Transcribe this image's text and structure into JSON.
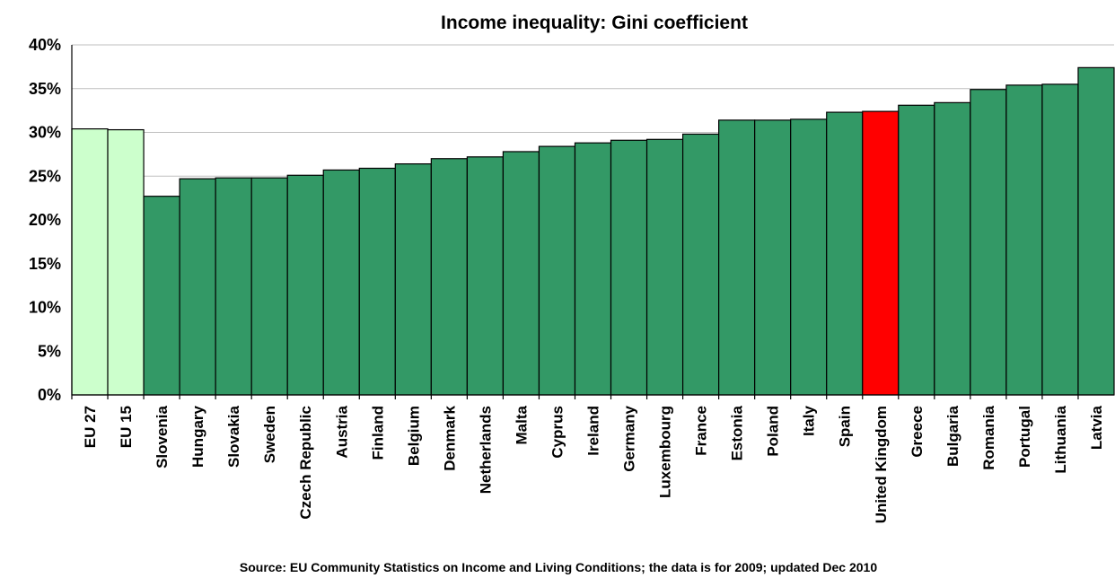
{
  "chart_data": {
    "type": "bar",
    "title": "Income inequality: Gini coefficient",
    "source": "Source: EU Community Statistics on Income and Living Conditions; the data is for 2009; updated Dec 2010",
    "xlabel": "",
    "ylabel": "",
    "ylim": [
      0,
      40
    ],
    "yticks": [
      0,
      5,
      10,
      15,
      20,
      25,
      30,
      35,
      40
    ],
    "y_tick_suffix": "%",
    "grid": true,
    "legend": "none",
    "colors": {
      "aggregate": "#ccffcc",
      "country": "#339966",
      "highlight": "#ff0000"
    },
    "categories": [
      "EU 27",
      "EU 15",
      "Slovenia",
      "Hungary",
      "Slovakia",
      "Sweden",
      "Czech Republic",
      "Austria",
      "Finland",
      "Belgium",
      "Denmark",
      "Netherlands",
      "Malta",
      "Cyprus",
      "Ireland",
      "Germany",
      "Luxembourg",
      "France",
      "Estonia",
      "Poland",
      "Italy",
      "Spain",
      "United Kingdom",
      "Greece",
      "Bulgaria",
      "Romania",
      "Portugal",
      "Lithuania",
      "Latvia"
    ],
    "values": [
      30.4,
      30.3,
      22.7,
      24.7,
      24.8,
      24.8,
      25.1,
      25.7,
      25.9,
      26.4,
      27.0,
      27.2,
      27.8,
      28.4,
      28.8,
      29.1,
      29.2,
      29.8,
      31.4,
      31.4,
      31.5,
      32.3,
      32.4,
      33.1,
      33.4,
      34.9,
      35.4,
      35.5,
      37.4
    ],
    "bar_groups": [
      "aggregate",
      "aggregate",
      "country",
      "country",
      "country",
      "country",
      "country",
      "country",
      "country",
      "country",
      "country",
      "country",
      "country",
      "country",
      "country",
      "country",
      "country",
      "country",
      "country",
      "country",
      "country",
      "country",
      "highlight",
      "country",
      "country",
      "country",
      "country",
      "country",
      "country"
    ]
  }
}
